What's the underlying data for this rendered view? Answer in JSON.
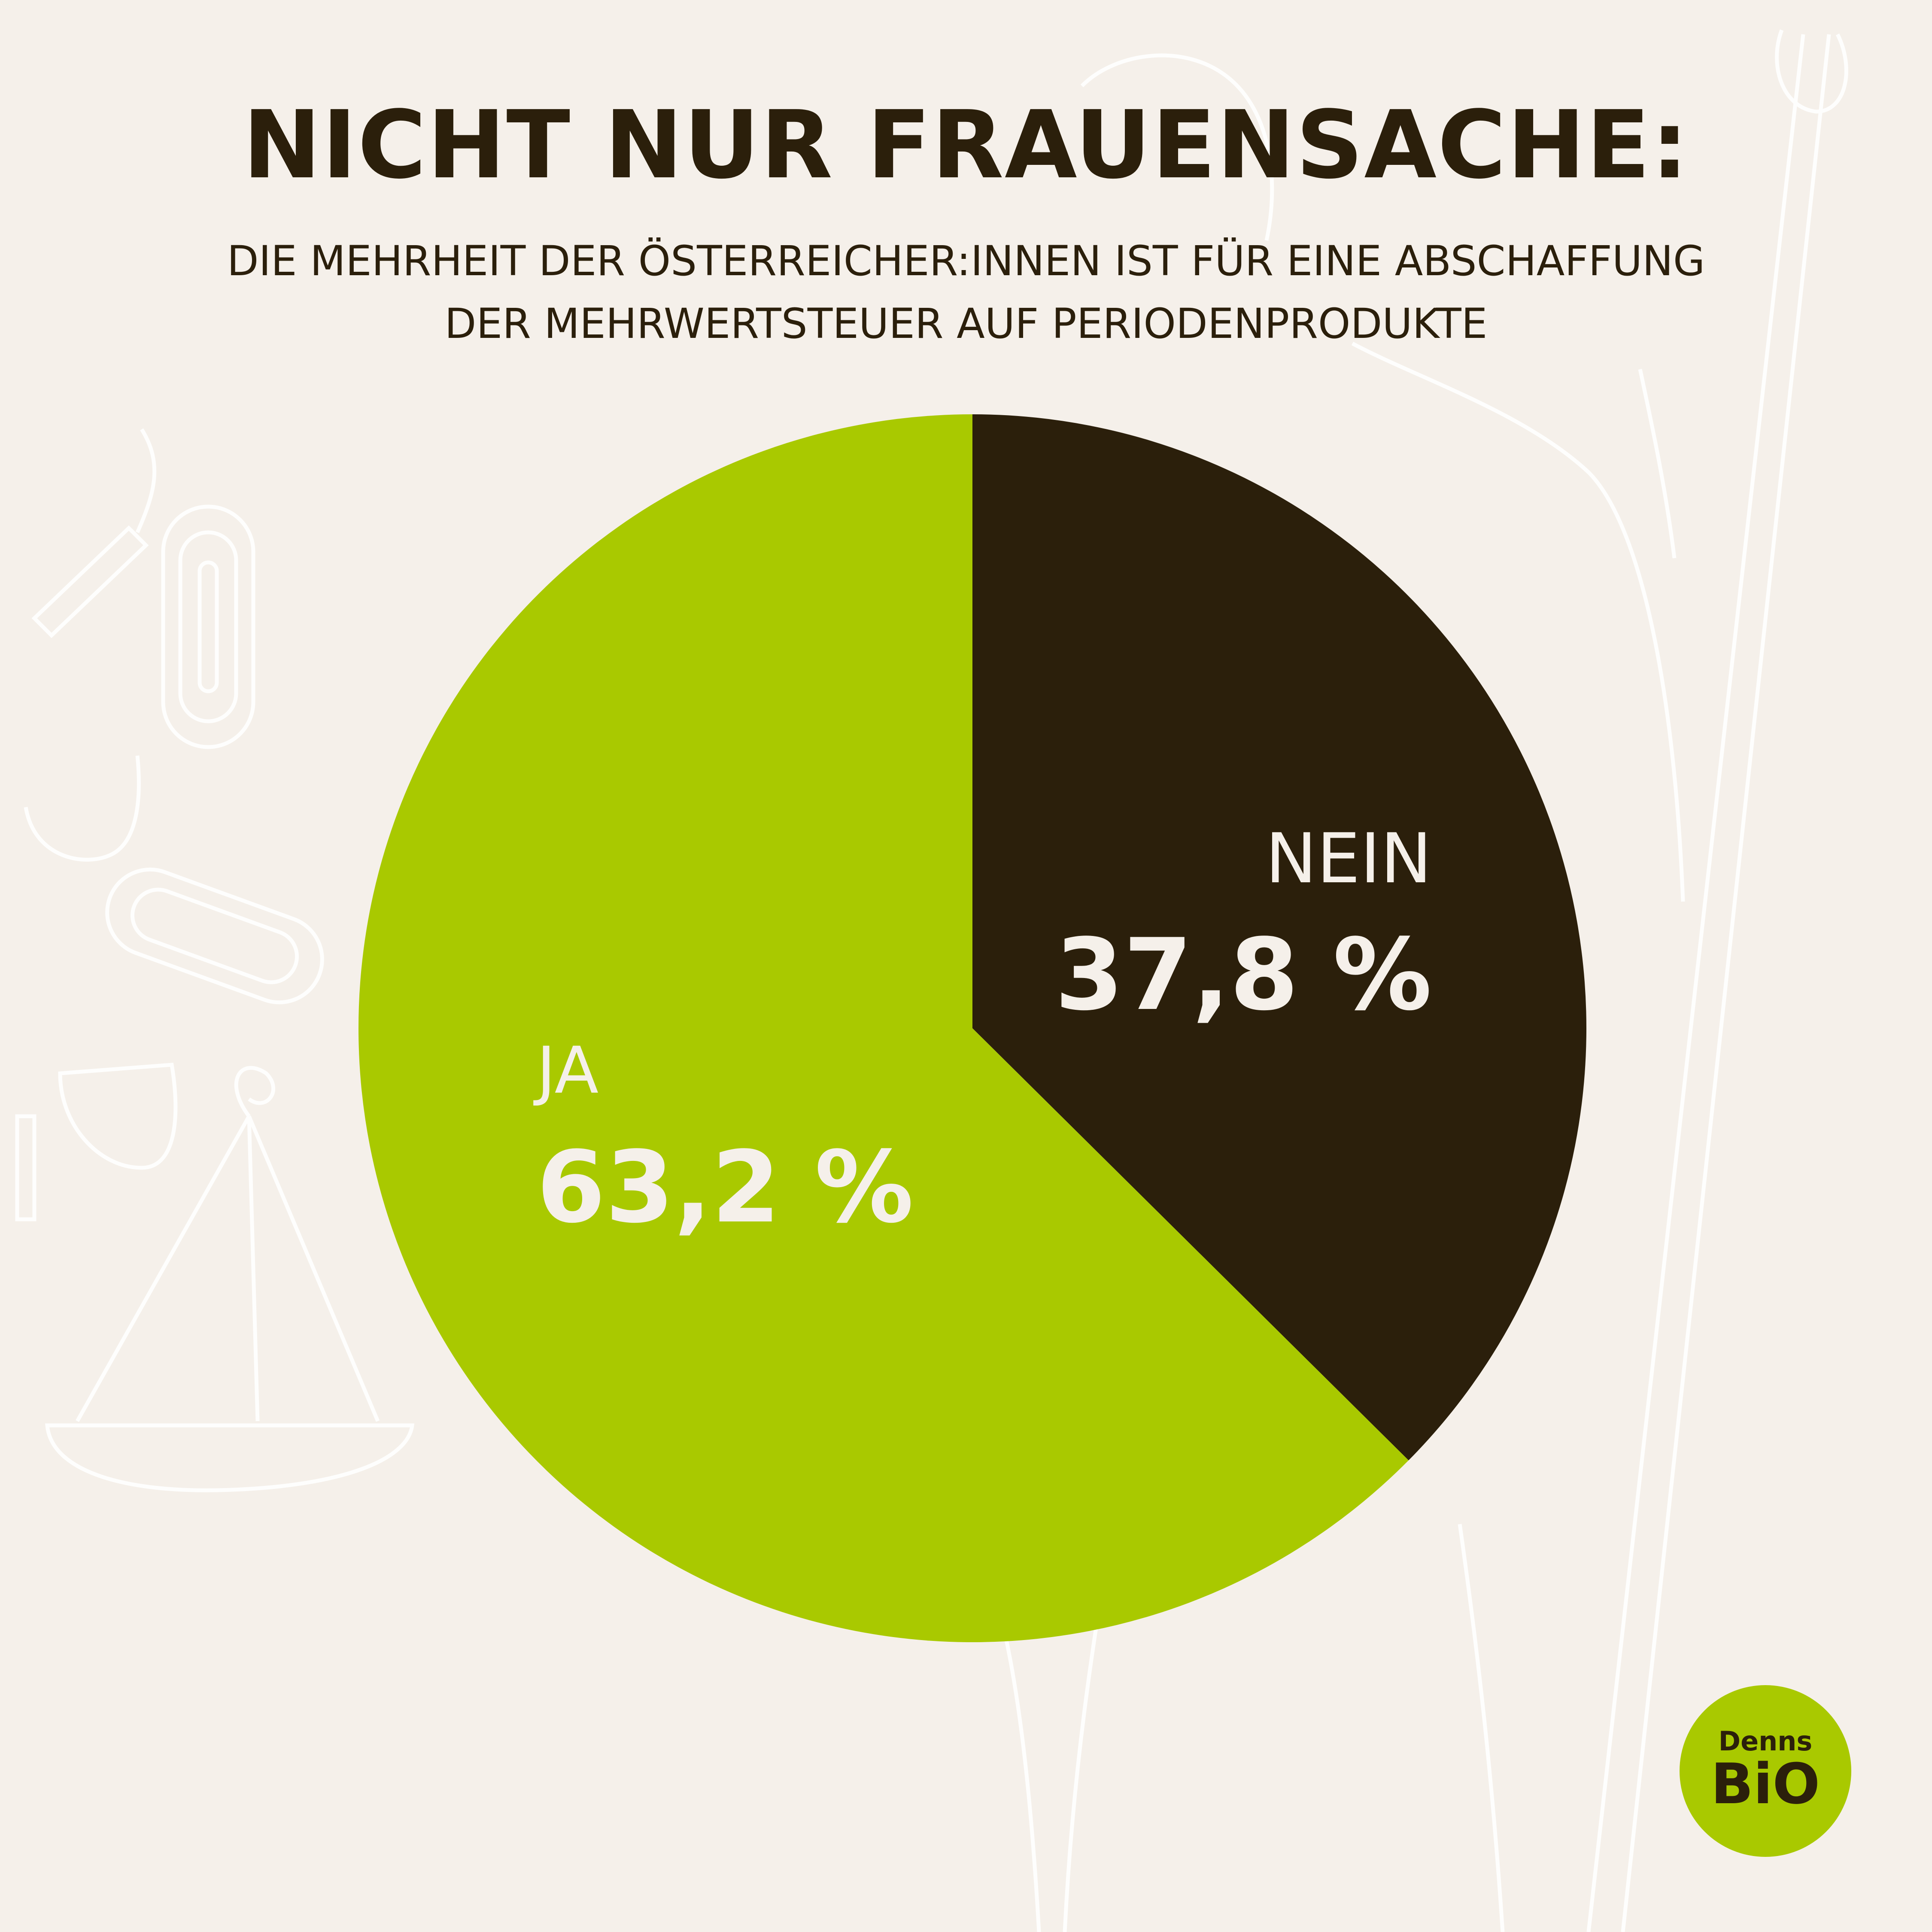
{
  "header": {
    "title": "NICHT NUR FRAUENSACHE:",
    "subtitle_line1": "DIE MEHRHEIT DER ÖSTERREICHER:INNEN IST FÜR EINE ABSCHAFFUNG",
    "subtitle_line2": "DER MEHRWERTSTEUER AUF PERIODENPRODUKTE"
  },
  "chart_data": {
    "type": "pie",
    "title": "NICHT NUR FRAUENSACHE:",
    "slices": [
      {
        "label": "NEIN",
        "value": 37.8,
        "value_label": "37,8 %",
        "color": "#2b1f0b"
      },
      {
        "label": "JA",
        "value": 63.2,
        "value_label": "63,2 %",
        "color": "#a9c900"
      }
    ]
  },
  "logo": {
    "top": "Denns",
    "bottom": "BiO",
    "color": "#a9c900"
  },
  "colors": {
    "background": "#f5f0ea",
    "text": "#2b1f0b",
    "label_text": "#f5f0ea"
  }
}
